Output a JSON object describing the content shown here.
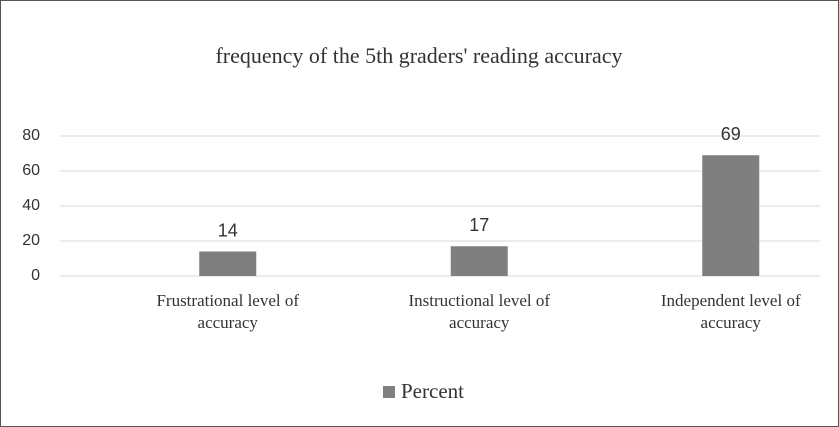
{
  "chart_data": {
    "type": "bar",
    "title": "frequency of the 5th graders' reading accuracy",
    "categories": [
      "Frustrational level of accuracy",
      "Instructional level of accuracy",
      "Independent level of accuracy"
    ],
    "series": [
      {
        "name": "Percent",
        "color": "#7f7f7f",
        "values": [
          14,
          17,
          69
        ]
      }
    ],
    "ylim": [
      0,
      80
    ],
    "yticks": [
      0,
      20,
      40,
      60,
      80
    ],
    "grid": true,
    "legend": "bottom"
  }
}
